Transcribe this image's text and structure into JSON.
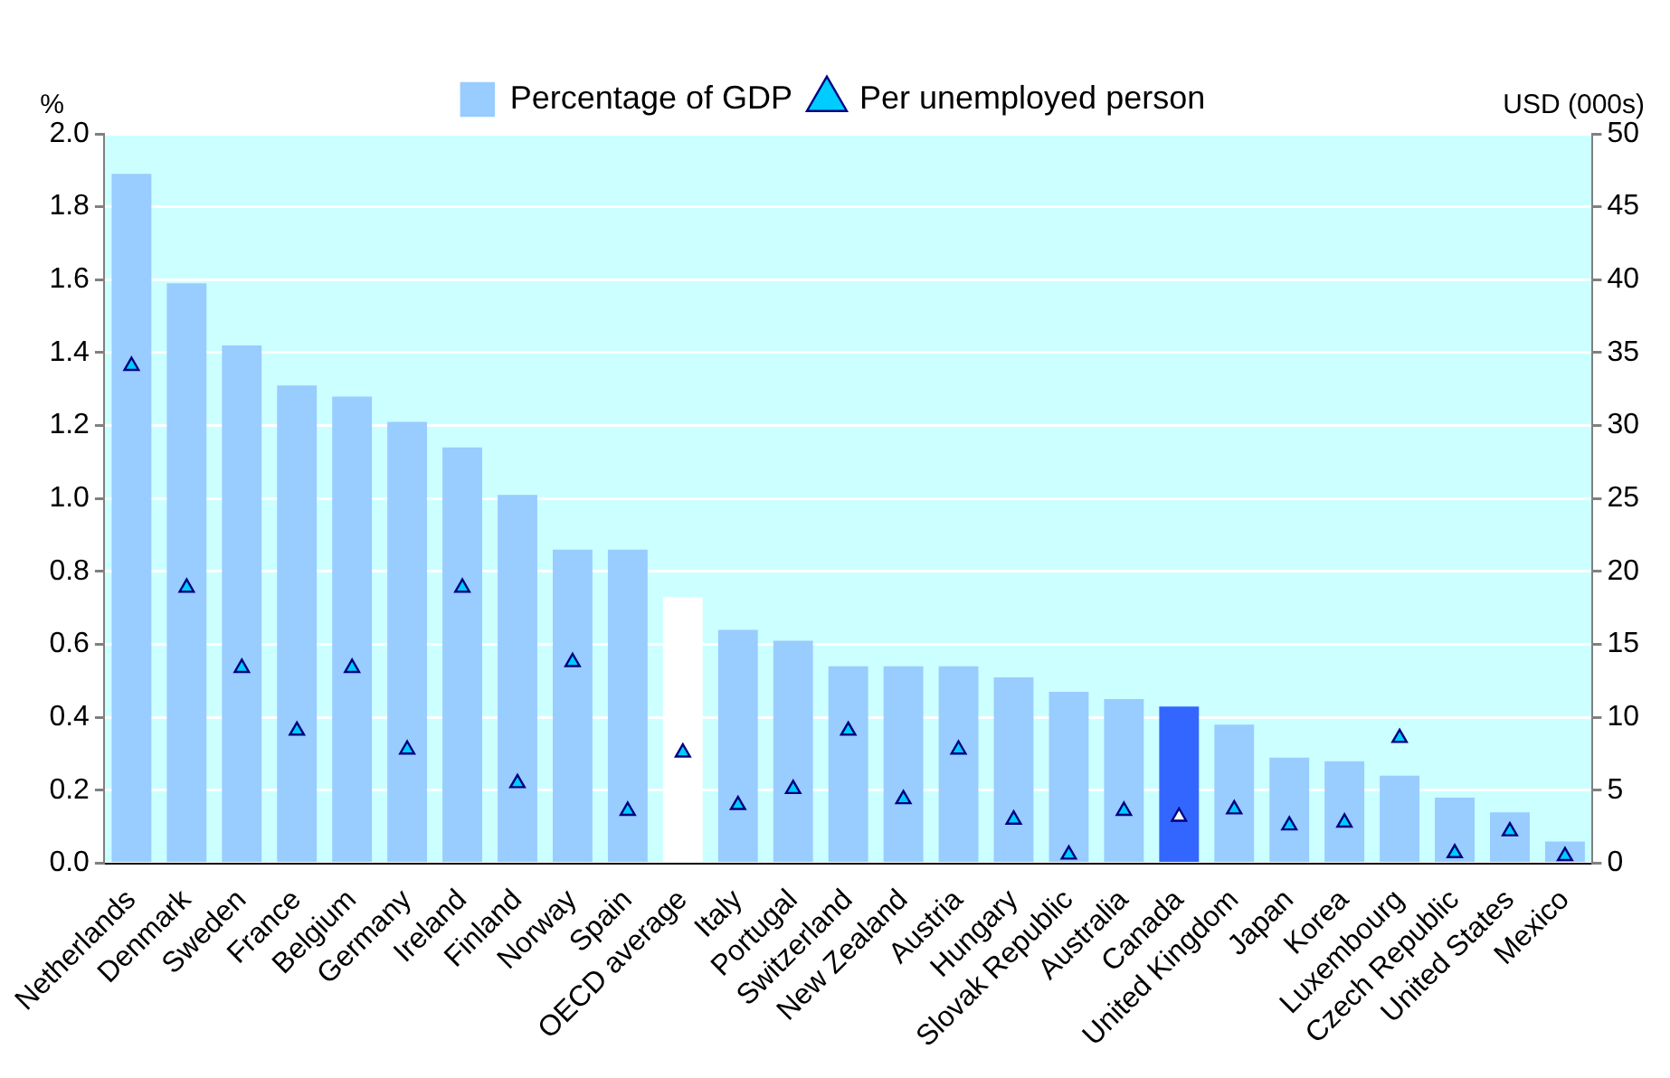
{
  "chart_data": {
    "type": "bar",
    "ylabel": "%",
    "y2label": "USD (000s)",
    "categories": [
      "Netherlands",
      "Denmark",
      "Sweden",
      "France",
      "Belgium",
      "Germany",
      "Ireland",
      "Finland",
      "Norway",
      "Spain",
      "OECD average",
      "Italy",
      "Portugal",
      "Switzerland",
      "New Zealand",
      "Austria",
      "Hungary",
      "Slovak Republic",
      "Australia",
      "Canada",
      "United Kingdom",
      "Japan",
      "Korea",
      "Luxembourg",
      "Czech Republic",
      "United States",
      "Mexico"
    ],
    "series": [
      {
        "name": "Percentage of GDP",
        "color": "#99ccff",
        "colors": [
          "#99ccff",
          "#99ccff",
          "#99ccff",
          "#99ccff",
          "#99ccff",
          "#99ccff",
          "#99ccff",
          "#99ccff",
          "#99ccff",
          "#99ccff",
          "#ffffff",
          "#99ccff",
          "#99ccff",
          "#99ccff",
          "#99ccff",
          "#99ccff",
          "#99ccff",
          "#99ccff",
          "#99ccff",
          "#3366ff",
          "#99ccff",
          "#99ccff",
          "#99ccff",
          "#99ccff",
          "#99ccff",
          "#99ccff",
          "#99ccff"
        ],
        "values": [
          1.89,
          1.59,
          1.42,
          1.31,
          1.28,
          1.21,
          1.14,
          1.01,
          0.86,
          0.86,
          0.73,
          0.64,
          0.61,
          0.54,
          0.54,
          0.54,
          0.51,
          0.47,
          0.45,
          0.43,
          0.38,
          0.29,
          0.28,
          0.24,
          0.18,
          0.14,
          0.06
        ]
      },
      {
        "name": "Per unemployed person",
        "type": "scatter",
        "axis": "y2",
        "marker": "triangle",
        "color": "#00ccff",
        "colors": [
          "#00ccff",
          "#00ccff",
          "#00ccff",
          "#00ccff",
          "#00ccff",
          "#00ccff",
          "#00ccff",
          "#00ccff",
          "#00ccff",
          "#00ccff",
          "#00ccff",
          "#00ccff",
          "#00ccff",
          "#00ccff",
          "#00ccff",
          "#00ccff",
          "#00ccff",
          "#00ccff",
          "#00ccff",
          "#ffffff",
          "#00ccff",
          "#00ccff",
          "#00ccff",
          "#00ccff",
          "#00ccff",
          "#00ccff",
          "#00ccff"
        ],
        "values": [
          34.1,
          18.9,
          13.4,
          9.1,
          13.4,
          7.8,
          18.9,
          5.5,
          13.8,
          3.6,
          7.6,
          4.0,
          5.1,
          9.1,
          4.4,
          7.8,
          3.0,
          0.6,
          3.6,
          3.2,
          3.7,
          2.6,
          2.8,
          8.6,
          0.7,
          2.2,
          0.5
        ]
      }
    ],
    "ylim": [
      0,
      2.0
    ],
    "yticks": [
      {
        "value": 0,
        "label": "0.0"
      },
      0.2,
      0.4,
      0.6,
      0.8,
      {
        "value": 1,
        "label": "1.0"
      },
      1.2,
      1.4,
      1.6,
      1.8,
      {
        "value": 2,
        "label": "2.0"
      }
    ],
    "y2lim": [
      0,
      50
    ],
    "y2ticks": [
      0,
      5,
      10,
      15,
      20,
      25,
      30,
      35,
      40,
      45,
      50
    ],
    "grid": "y",
    "legend": "top"
  }
}
